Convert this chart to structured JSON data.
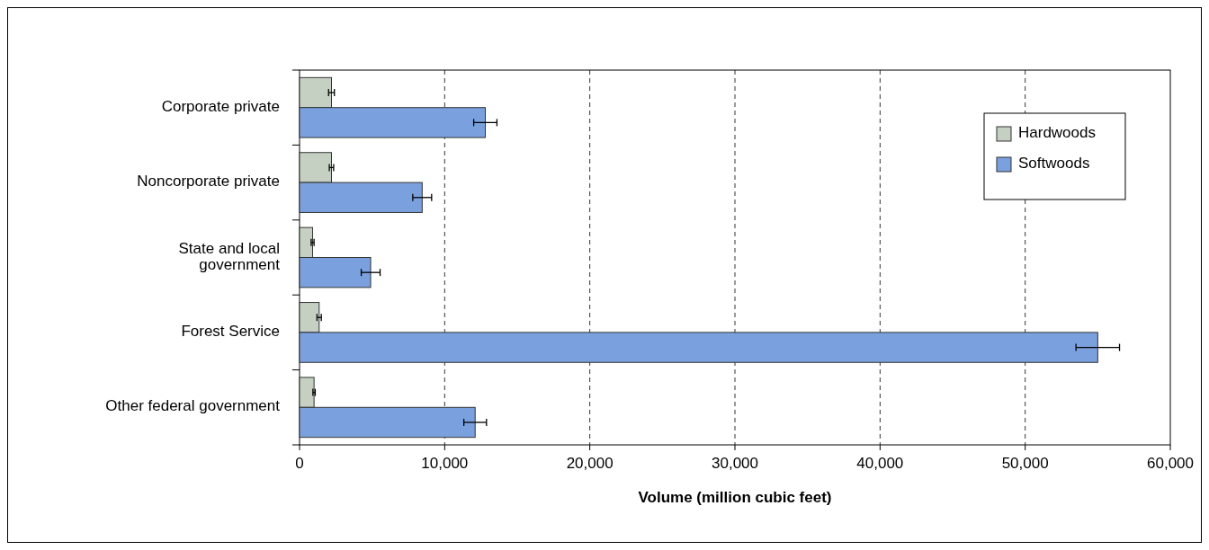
{
  "chart_data": {
    "type": "bar",
    "orientation": "horizontal",
    "xlabel": "Volume (million cubic feet)",
    "categories": [
      "Corporate private",
      "Noncorporate private",
      "State and local government",
      "Forest Service",
      "Other federal government"
    ],
    "series": [
      {
        "name": "Hardwoods",
        "color": "#c5d0c3",
        "values": [
          2200,
          2200,
          900,
          1350,
          1000
        ],
        "errors": [
          200,
          150,
          100,
          150,
          80
        ]
      },
      {
        "name": "Softwoods",
        "color": "#7aa1de",
        "values": [
          12800,
          8450,
          4900,
          55000,
          12100
        ],
        "errors": [
          800,
          650,
          650,
          1500,
          780
        ]
      }
    ],
    "xlim": [
      0,
      60000
    ],
    "xticks": [
      0,
      {
        "value": 10000,
        "label": "10,000"
      },
      {
        "value": 20000,
        "label": "20,000"
      },
      {
        "value": 30000,
        "label": "30,000"
      },
      {
        "value": 40000,
        "label": "40,000"
      },
      {
        "value": 50000,
        "label": "50,000"
      },
      {
        "value": 60000,
        "label": "60,000"
      }
    ],
    "grid": "x",
    "legend": "top right"
  }
}
